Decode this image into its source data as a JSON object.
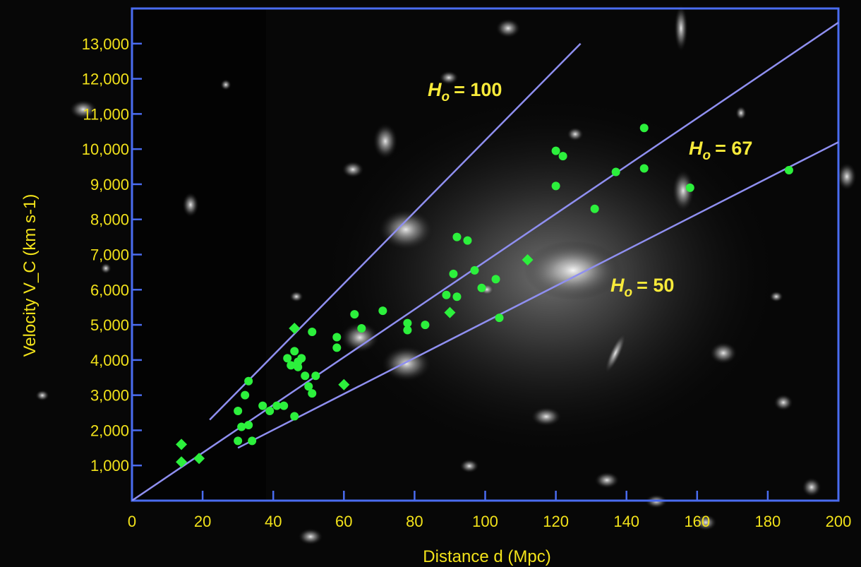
{
  "chart_data": {
    "type": "scatter",
    "title": "",
    "xlabel": "Distance d (Mpc)",
    "ylabel": "Velocity V_C (km s-1)",
    "xlim": [
      0,
      200
    ],
    "ylim": [
      0,
      14000
    ],
    "x_ticks": [
      0,
      20,
      40,
      60,
      80,
      100,
      120,
      140,
      160,
      180,
      200
    ],
    "x_tick_labels": [
      "0",
      "20",
      "40",
      "60",
      "80",
      "100",
      "120",
      "140",
      "160",
      "180",
      "200"
    ],
    "y_ticks": [
      1000,
      2000,
      3000,
      4000,
      5000,
      6000,
      7000,
      8000,
      9000,
      10000,
      11000,
      12000,
      13000
    ],
    "y_tick_labels": [
      "1,000",
      "2,000",
      "3,000",
      "4,000",
      "5,000",
      "6,000",
      "7,000",
      "8,000",
      "9,000",
      "10,000",
      "11,000",
      "12,000",
      "13,000"
    ],
    "grid": false,
    "colors": {
      "frame": "#4a6cf0",
      "ticks_text": "#f2e21a",
      "fit_lines": "#8f8ff0",
      "points": "#2cf03c"
    },
    "series": [
      {
        "marker": "circle",
        "points": [
          [
            33,
            3400
          ],
          [
            32,
            3000
          ],
          [
            30,
            2550
          ],
          [
            31,
            2100
          ],
          [
            33,
            2150
          ],
          [
            30,
            1700
          ],
          [
            34,
            1700
          ],
          [
            37,
            2700
          ],
          [
            39,
            2550
          ],
          [
            41,
            2700
          ],
          [
            43,
            2700
          ],
          [
            46,
            2400
          ],
          [
            44,
            4050
          ],
          [
            45,
            3850
          ],
          [
            46,
            4250
          ],
          [
            47,
            3950
          ],
          [
            48,
            4050
          ],
          [
            47,
            3800
          ],
          [
            49,
            3550
          ],
          [
            50,
            3250
          ],
          [
            51,
            3050
          ],
          [
            52,
            3550
          ],
          [
            51,
            4800
          ],
          [
            58,
            4650
          ],
          [
            58,
            4350
          ],
          [
            63,
            5300
          ],
          [
            65,
            4900
          ],
          [
            71,
            5400
          ],
          [
            78,
            5050
          ],
          [
            78,
            4850
          ],
          [
            83,
            5000
          ],
          [
            89,
            5850
          ],
          [
            91,
            6450
          ],
          [
            92,
            5800
          ],
          [
            92,
            7500
          ],
          [
            95,
            7400
          ],
          [
            97,
            6550
          ],
          [
            99,
            6050
          ],
          [
            103,
            6300
          ],
          [
            104,
            5200
          ],
          [
            120,
            8950
          ],
          [
            120,
            9950
          ],
          [
            122,
            9800
          ],
          [
            131,
            8300
          ],
          [
            137,
            9350
          ],
          [
            145,
            9450
          ],
          [
            145,
            10600
          ],
          [
            158,
            8900
          ],
          [
            186,
            9400
          ]
        ]
      },
      {
        "marker": "diamond",
        "points": [
          [
            14,
            1600
          ],
          [
            14,
            1100
          ],
          [
            19,
            1200
          ],
          [
            46,
            4900
          ],
          [
            60,
            3300
          ],
          [
            90,
            5350
          ],
          [
            112,
            6850
          ]
        ]
      }
    ],
    "fit_lines": [
      {
        "label_H": "H",
        "label_sub": "o",
        "label_value": "= 100",
        "x_start": 22,
        "x_end": 127,
        "y_start": 2300,
        "y_end": 13000
      },
      {
        "label_H": "H",
        "label_sub": "o",
        "label_value": "= 67",
        "x_start": 0,
        "x_end": 200,
        "y_start": 0,
        "y_end": 13600
      },
      {
        "label_H": "H",
        "label_sub": "o",
        "label_value": "= 50",
        "x_start": 30,
        "x_end": 200,
        "y_start": 1500,
        "y_end": 10200
      }
    ]
  }
}
